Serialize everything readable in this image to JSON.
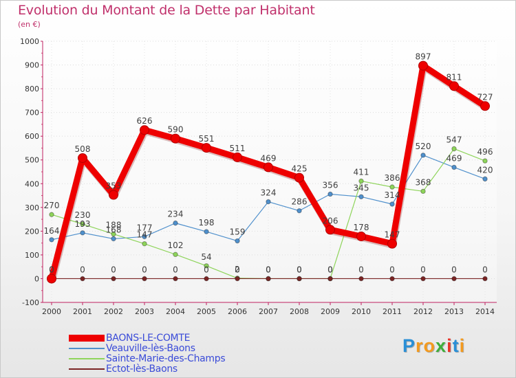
{
  "header": {
    "title": "Evolution du Montant de la Dette par Habitant",
    "unit": "(en €)"
  },
  "brand": {
    "letters": [
      {
        "ch": "P",
        "color": "#2a8fd6"
      },
      {
        "ch": "r",
        "color": "#f39a1f"
      },
      {
        "ch": "o",
        "color": "#f39a1f"
      },
      {
        "ch": "x",
        "color": "#3fae3a"
      },
      {
        "ch": "i",
        "color": "#e8352a"
      },
      {
        "ch": "t",
        "color": "#2a8fd6"
      },
      {
        "ch": "i",
        "color": "#f39a1f"
      }
    ]
  },
  "chart_data": {
    "type": "line",
    "x": [
      "2000",
      "2001",
      "2002",
      "2003",
      "2004",
      "2005",
      "2006",
      "2007",
      "2008",
      "2009",
      "2010",
      "2011",
      "2012",
      "2013",
      "2014"
    ],
    "ylim": [
      -100,
      1000
    ],
    "yticks": [
      -100,
      0,
      100,
      200,
      300,
      400,
      500,
      600,
      700,
      800,
      900,
      1000
    ],
    "grid": true,
    "legend_position": "bottom-left",
    "series": [
      {
        "name": "BAONS-LE-COMTE",
        "color": "#ee0000",
        "width": "thick",
        "values": [
          0,
          508,
          353,
          626,
          590,
          551,
          511,
          469,
          425,
          206,
          178,
          147,
          897,
          811,
          727
        ],
        "labels": [
          "0",
          "508",
          "353",
          "626",
          "590",
          "551",
          "511",
          "469",
          "425",
          "206",
          "178",
          "147",
          "897",
          "811",
          "727"
        ]
      },
      {
        "name": "Veauville-lès-Baons",
        "color": "#4f90cc",
        "width": "thin",
        "values": [
          164,
          193,
          168,
          177,
          234,
          198,
          159,
          324,
          286,
          356,
          345,
          314,
          520,
          469,
          420
        ],
        "labels": [
          "164",
          "193",
          "168",
          "177",
          "234",
          "198",
          "159",
          "324",
          "286",
          "356",
          "345",
          "314",
          "520",
          "469",
          "420"
        ]
      },
      {
        "name": "Sainte-Marie-des-Champs",
        "color": "#8ed45a",
        "width": "thin",
        "values": [
          270,
          230,
          188,
          147,
          102,
          54,
          2,
          0,
          0,
          0,
          411,
          386,
          368,
          547,
          496
        ],
        "labels": [
          "270",
          "230",
          "188",
          "147",
          "102",
          "54",
          "2",
          "0",
          "0",
          "0",
          "411",
          "386",
          "368",
          "547",
          "496"
        ]
      },
      {
        "name": "Ectot-lès-Baons",
        "color": "#7a2424",
        "width": "thin",
        "values": [
          0,
          0,
          0,
          0,
          0,
          0,
          0,
          0,
          0,
          0,
          0,
          0,
          0,
          0,
          0
        ],
        "labels": [
          "0",
          "0",
          "0",
          "0",
          "0",
          "0",
          "0",
          "0",
          "0",
          "0",
          "0",
          "0",
          "0",
          "0",
          "0"
        ]
      }
    ]
  }
}
